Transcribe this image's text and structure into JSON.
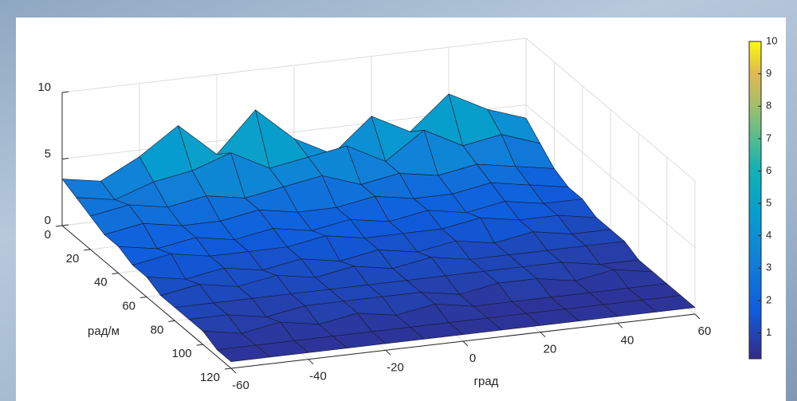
{
  "chart_data": {
    "type": "surface",
    "xlabel": "град",
    "ylabel": "рад/м",
    "x": [
      -60,
      -50,
      -40,
      -30,
      -20,
      -10,
      0,
      10,
      20,
      30,
      40,
      50,
      60
    ],
    "y": [
      0,
      10,
      20,
      30,
      40,
      50,
      60,
      70,
      80,
      90,
      100,
      110,
      120
    ],
    "z": [
      [
        3.5,
        3,
        4.5,
        6.5,
        4,
        7,
        4.5,
        3,
        5.5,
        4,
        6.5,
        5,
        4
      ],
      [
        3,
        2.5,
        3.5,
        4,
        5,
        3.5,
        4,
        4.5,
        3,
        5,
        3.5,
        4,
        3
      ],
      [
        2.5,
        3,
        2.5,
        3,
        2.5,
        3,
        3.5,
        2.5,
        3,
        2.5,
        3,
        2.5,
        2
      ],
      [
        2,
        2.5,
        2,
        2,
        2.5,
        2,
        2,
        2.5,
        2,
        2,
        2.5,
        2,
        1.5
      ],
      [
        2,
        1.5,
        2,
        1.5,
        2,
        1.5,
        2,
        1.5,
        2,
        1.5,
        2,
        1.5,
        1.5
      ],
      [
        1.5,
        2,
        1.5,
        1.5,
        1.5,
        2,
        1.5,
        1.5,
        1.5,
        2,
        1.5,
        1.5,
        1
      ],
      [
        1.5,
        1,
        1.5,
        1,
        1.5,
        1,
        1.5,
        1,
        1.5,
        1,
        1.5,
        1,
        1
      ],
      [
        1,
        1.5,
        1,
        1.5,
        1,
        1.5,
        1,
        1.5,
        1,
        1,
        1,
        1,
        1
      ],
      [
        1,
        1,
        1,
        1,
        1,
        1,
        1,
        1,
        1,
        1,
        1,
        0.5,
        0.5
      ],
      [
        1,
        1,
        0.5,
        1,
        1,
        1,
        1,
        0.5,
        1,
        1,
        0.5,
        1,
        0.5
      ],
      [
        1,
        0.5,
        1,
        0.5,
        1,
        0.5,
        1,
        0.5,
        0.5,
        0.5,
        0.5,
        0.5,
        0.5
      ],
      [
        0.5,
        0.5,
        0.5,
        0.5,
        0.5,
        0.5,
        0.5,
        0.5,
        0.5,
        0.5,
        0.5,
        0.5,
        0.5
      ],
      [
        0.5,
        0.5,
        0.5,
        0.5,
        0.5,
        0.5,
        0.5,
        0.5,
        0.5,
        0.5,
        0.5,
        0.5,
        0.5
      ]
    ],
    "xlim": [
      -60,
      60
    ],
    "xticks": [
      -60,
      -40,
      -20,
      0,
      20,
      40,
      60
    ],
    "ylim": [
      0,
      120
    ],
    "yticks": [
      0,
      20,
      40,
      60,
      80,
      100,
      120
    ],
    "zlim": [
      0,
      10
    ],
    "zticks": [
      0,
      5,
      10
    ],
    "colormap": "parula",
    "clim": [
      0.2,
      10
    ],
    "cticks": [
      1,
      2,
      3,
      4,
      5,
      6,
      7,
      8,
      9,
      10
    ],
    "grid": true
  }
}
